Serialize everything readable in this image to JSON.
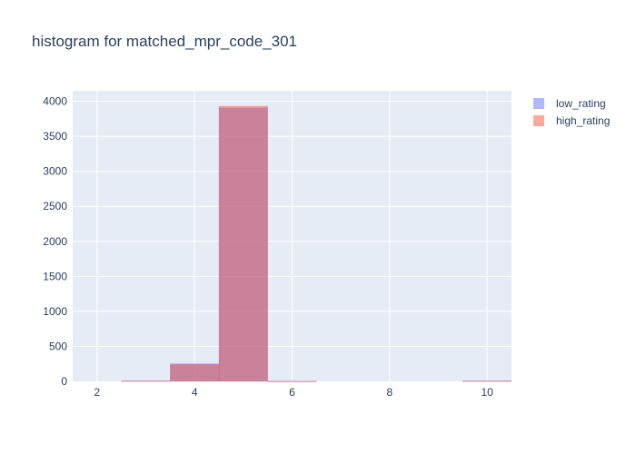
{
  "chart_data": {
    "type": "bar",
    "title": "histogram for matched_mpr_code_301",
    "xlabel": "",
    "ylabel": "",
    "xlim": [
      1.5,
      10.5
    ],
    "ylim": [
      0,
      4150
    ],
    "x_ticks": [
      2,
      4,
      6,
      8,
      10
    ],
    "y_ticks": [
      0,
      500,
      1000,
      1500,
      2000,
      2500,
      3000,
      3500,
      4000
    ],
    "grid": true,
    "barmode": "overlay",
    "bin_width": 1,
    "legend_position": "top-right",
    "series": [
      {
        "name": "low_rating",
        "color": "#636efa",
        "opacity": 0.5,
        "bins": [
          {
            "x": 3,
            "value": 8
          },
          {
            "x": 4,
            "value": 252
          },
          {
            "x": 5,
            "value": 3905
          },
          {
            "x": 6,
            "value": 2
          },
          {
            "x": 10,
            "value": 8
          }
        ]
      },
      {
        "name": "high_rating",
        "color": "#ef553b",
        "opacity": 0.5,
        "bins": [
          {
            "x": 3,
            "value": 5
          },
          {
            "x": 4,
            "value": 240
          },
          {
            "x": 5,
            "value": 3930
          },
          {
            "x": 6,
            "value": 2
          },
          {
            "x": 10,
            "value": 3
          }
        ]
      }
    ]
  }
}
